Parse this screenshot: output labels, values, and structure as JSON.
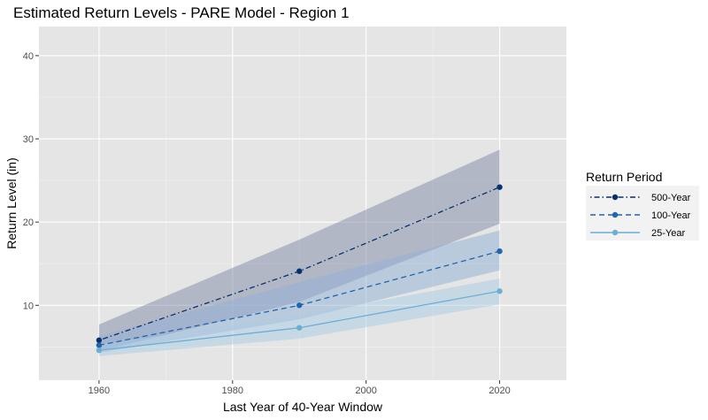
{
  "chart_data": {
    "type": "line",
    "title": "Estimated Return Levels - PARE Model - Region 1",
    "xlabel": "Last Year of 40-Year Window",
    "ylabel": "Return Level (in)",
    "xlim": [
      1951,
      2030
    ],
    "ylim": [
      1,
      43.5
    ],
    "x_ticks": [
      1960,
      1980,
      2000,
      2020
    ],
    "y_ticks": [
      10,
      20,
      30,
      40
    ],
    "grid": true,
    "legend_title": "Return Period",
    "legend_position": "right",
    "x": [
      1960,
      1990,
      2020
    ],
    "series": [
      {
        "name": "500-Year",
        "values": [
          5.8,
          14.1,
          24.2
        ],
        "lower": [
          4.5,
          10.4,
          19.8
        ],
        "upper": [
          7.7,
          17.9,
          28.7
        ],
        "color": "#08306b",
        "band_color": "#7f8aa8",
        "linestyle": "dotdash"
      },
      {
        "name": "100-Year",
        "values": [
          5.2,
          10.0,
          16.5
        ],
        "lower": [
          4.3,
          8.3,
          14.2
        ],
        "upper": [
          6.3,
          12.8,
          19.0
        ],
        "color": "#2166ac",
        "band_color": "#8fb0d6",
        "linestyle": "dashed"
      },
      {
        "name": "25-Year",
        "values": [
          4.6,
          7.3,
          11.7
        ],
        "lower": [
          3.9,
          6.0,
          10.1
        ],
        "upper": [
          5.3,
          8.8,
          13.2
        ],
        "color": "#6baed6",
        "band_color": "#a9cbe6",
        "linestyle": "solid"
      }
    ]
  }
}
